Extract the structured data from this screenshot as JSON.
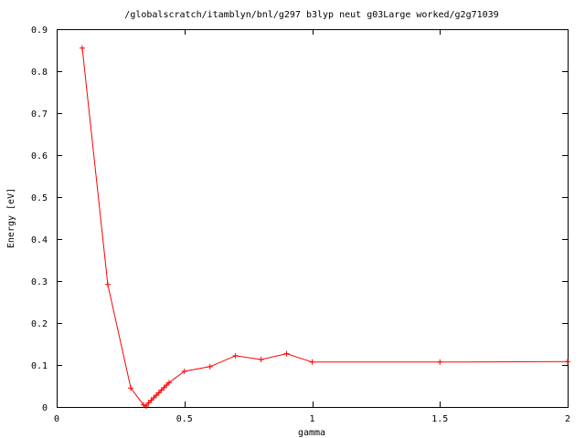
{
  "chart_data": {
    "type": "line",
    "title": "/globalscratch/itamblyn/bnl/g297 b3lyp neut g03Large worked/g2g71039",
    "xlabel": "gamma",
    "ylabel": "Energy [eV]",
    "xlim": [
      0,
      2
    ],
    "ylim": [
      0,
      0.9
    ],
    "xticks": [
      0,
      0.5,
      1,
      1.5,
      2
    ],
    "xtick_labels": [
      "0",
      "0.5",
      "1",
      "1.5",
      "2"
    ],
    "yticks": [
      0,
      0.1,
      0.2,
      0.3,
      0.4,
      0.5,
      0.6,
      0.7,
      0.8,
      0.9
    ],
    "ytick_labels": [
      "0",
      "0.1",
      "0.2",
      "0.3",
      "0.4",
      "0.5",
      "0.6",
      "0.7",
      "0.8",
      "0.9"
    ],
    "grid": false,
    "series": [
      {
        "color": "#ff0000",
        "marker": "plus",
        "x": [
          0.1,
          0.2,
          0.29,
          0.34,
          0.35,
          0.36,
          0.37,
          0.38,
          0.39,
          0.4,
          0.41,
          0.42,
          0.43,
          0.44,
          0.5,
          0.6,
          0.7,
          0.8,
          0.9,
          1.0,
          1.5,
          2.0
        ],
        "y": [
          0.855,
          0.292,
          0.045,
          0.005,
          0.002,
          0.01,
          0.016,
          0.022,
          0.028,
          0.034,
          0.04,
          0.046,
          0.052,
          0.058,
          0.085,
          0.096,
          0.122,
          0.113,
          0.127,
          0.107,
          0.107,
          0.108
        ]
      }
    ]
  }
}
